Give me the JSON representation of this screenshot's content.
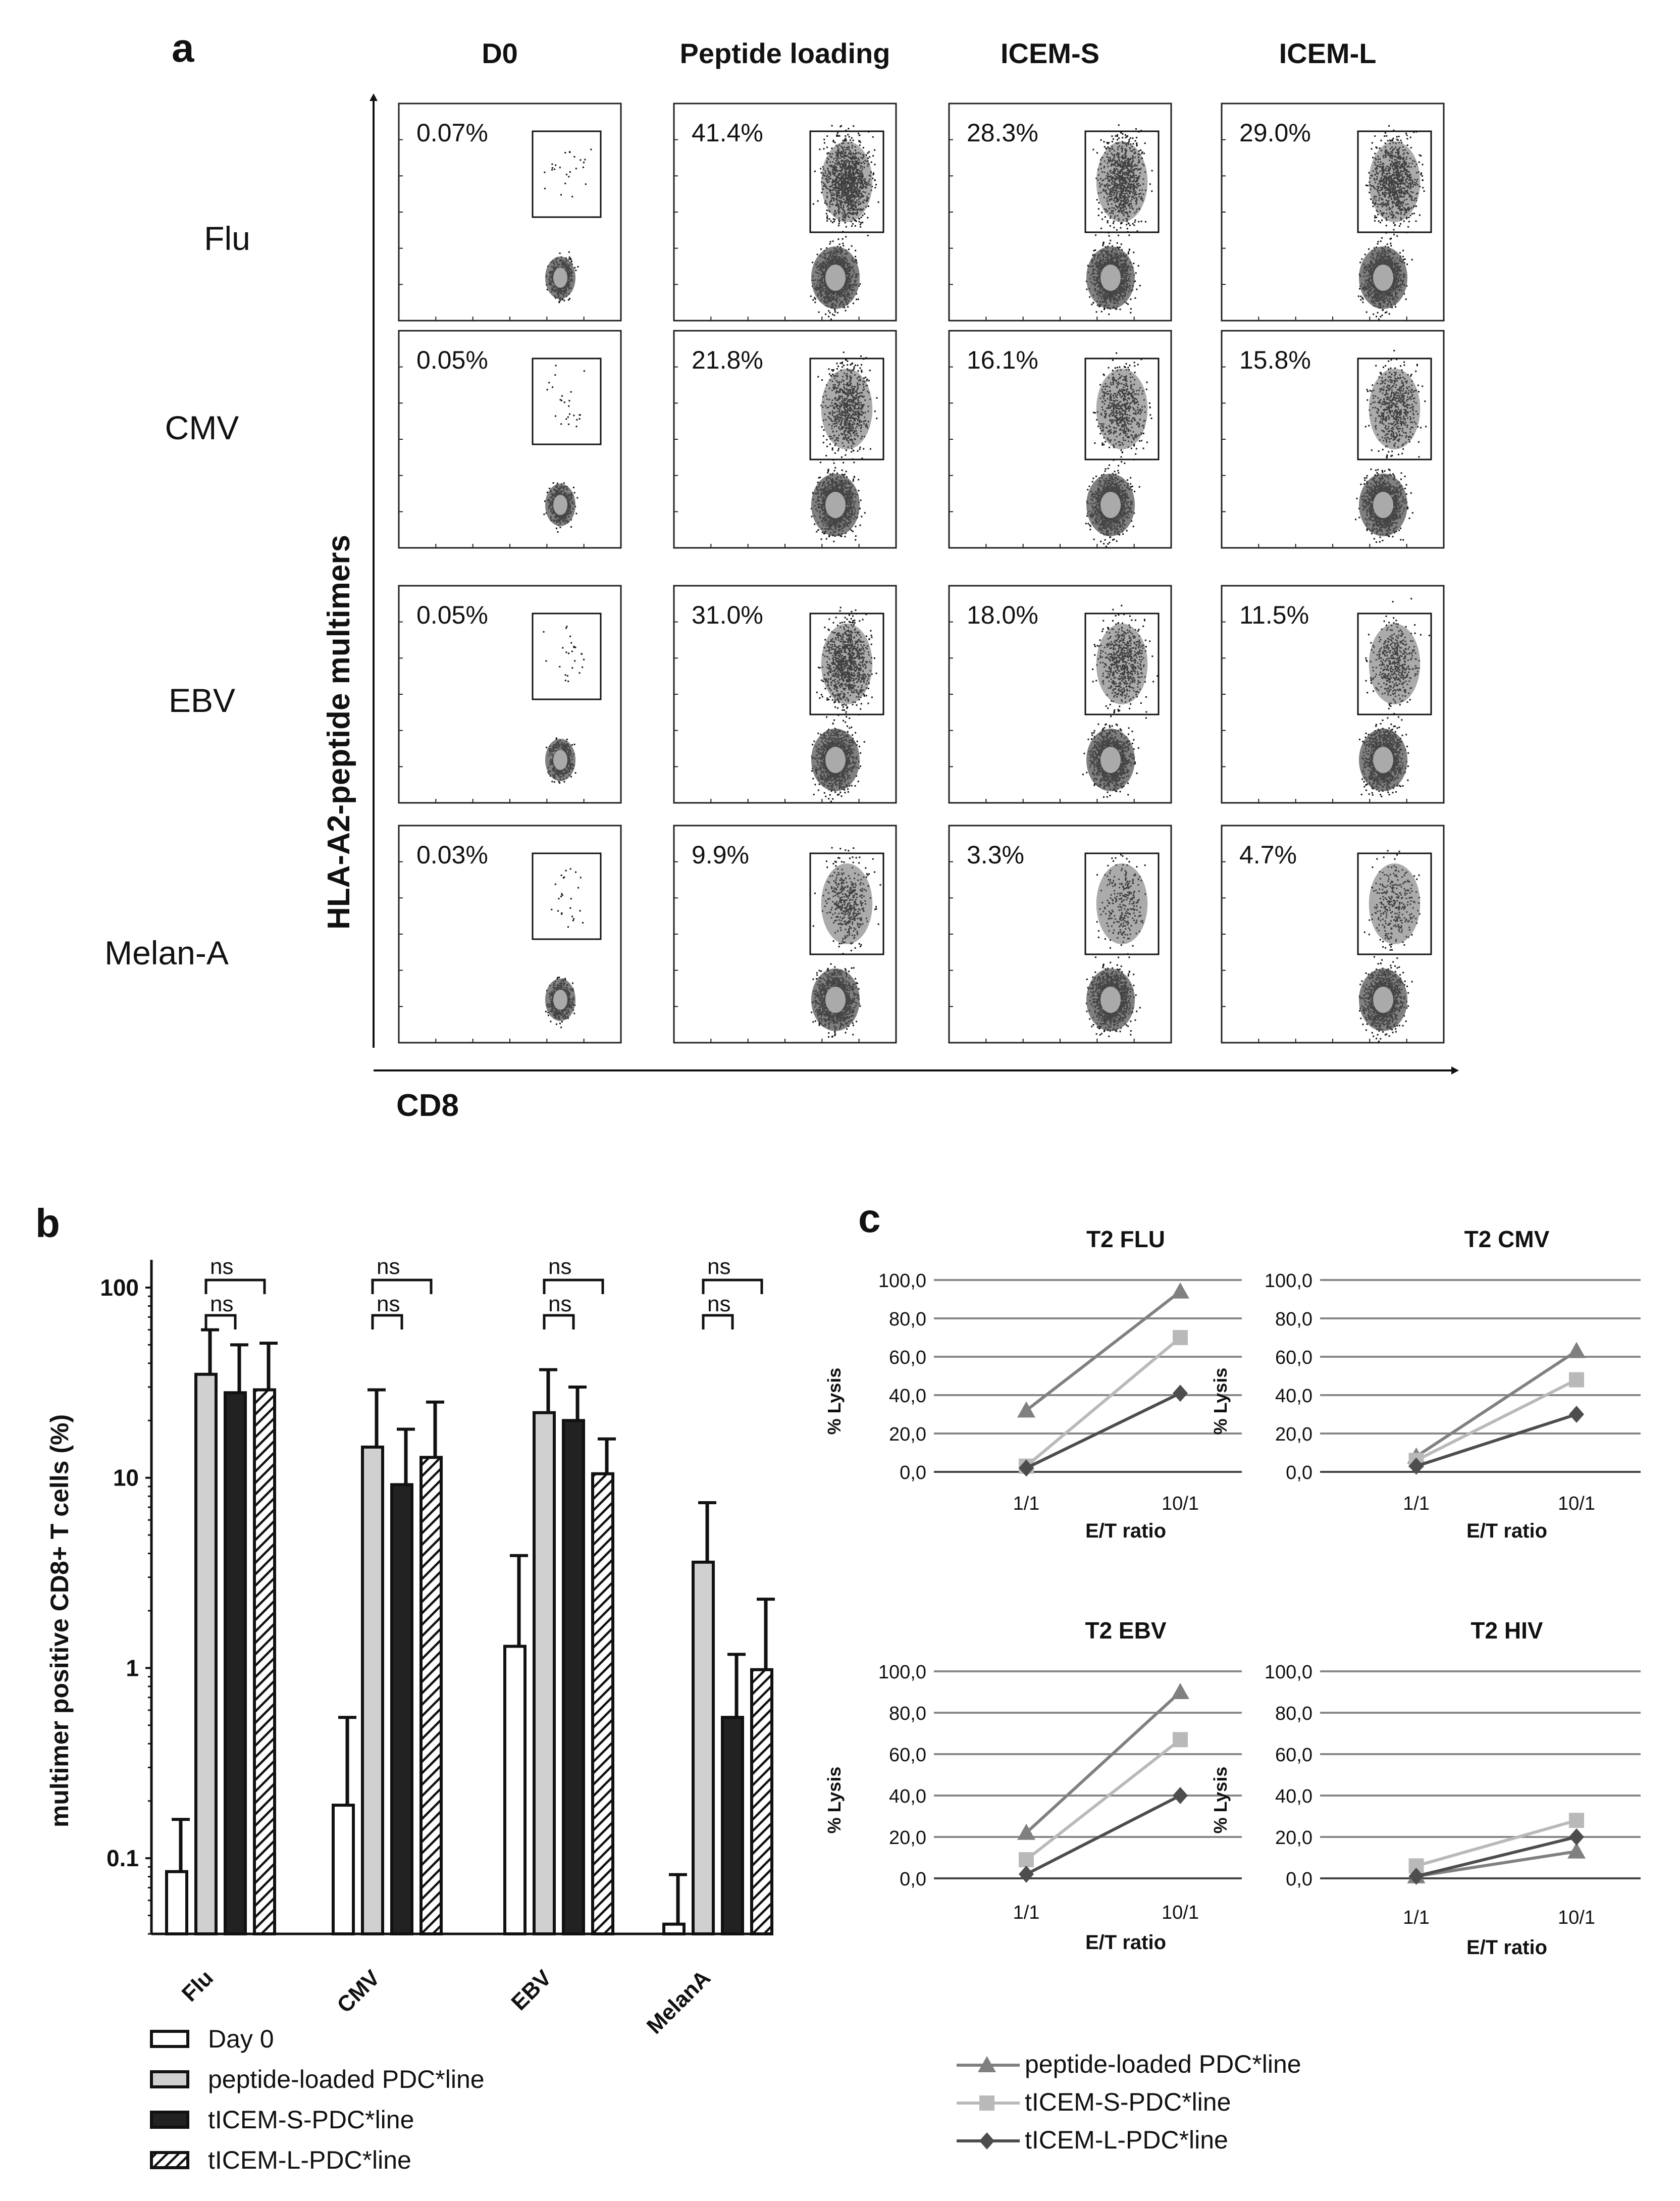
{
  "panel_labels": {
    "a": "a",
    "b": "b",
    "c": "c"
  },
  "colors": {
    "peptide": "#808080",
    "s": "#b9b9b9",
    "l": "#4d4d4d",
    "bar_grey": "#d0d0d0",
    "bar_black": "#222222",
    "grid": "#888888"
  },
  "chart_data": [
    {
      "id": "a",
      "type": "scatter",
      "title": "",
      "xlabel": "CD8",
      "ylabel": "HLA-A2-peptide multimers",
      "columns": [
        "D0",
        "Peptide loading",
        "ICEM-S",
        "ICEM-L"
      ],
      "rows": [
        "Flu",
        "CMV",
        "EBV",
        "Melan-A"
      ],
      "percentages": [
        [
          "0.07%",
          "41.4%",
          "28.3%",
          "29.0%"
        ],
        [
          "0.05%",
          "21.8%",
          "16.1%",
          "15.8%"
        ],
        [
          "0.05%",
          "31.0%",
          "18.0%",
          "11.5%"
        ],
        [
          "0.03%",
          "9.9%",
          "3.3%",
          "4.7%"
        ]
      ]
    },
    {
      "id": "b",
      "type": "bar",
      "ylabel": "multimer positive CD8+ T cells (%)",
      "yscale": "log",
      "ylim": [
        0.04,
        100
      ],
      "yticks": [
        "0.1",
        "1",
        "10",
        "100"
      ],
      "ytick_values": [
        0.1,
        1,
        10,
        100
      ],
      "categories": [
        "Flu",
        "CMV",
        "EBV",
        "MelanA"
      ],
      "series": [
        {
          "name": "Day 0",
          "pattern": "white",
          "values": [
            0.085,
            0.19,
            1.3,
            0.045
          ],
          "errors": [
            0.16,
            0.55,
            3.9,
            0.082
          ]
        },
        {
          "name": "peptide-loaded PDC*line",
          "pattern": "grey",
          "values": [
            35,
            14.5,
            22,
            3.6
          ],
          "errors": [
            60,
            29,
            37,
            7.4
          ]
        },
        {
          "name": "tICEM-S-PDC*line",
          "pattern": "black",
          "values": [
            28,
            9.2,
            20,
            0.55
          ],
          "errors": [
            50,
            18,
            30,
            1.18
          ]
        },
        {
          "name": "tICEM-L-PDC*line",
          "pattern": "hatched",
          "values": [
            29,
            12.8,
            10.5,
            0.98
          ],
          "errors": [
            51,
            25,
            16,
            2.3
          ]
        }
      ],
      "significance": [
        [
          "ns",
          "ns"
        ],
        [
          "ns",
          "ns"
        ],
        [
          "ns",
          "ns"
        ],
        [
          "ns",
          "ns"
        ]
      ]
    },
    {
      "id": "c",
      "type": "line",
      "xlabel": "E/T ratio",
      "ylabel": "% Lysis",
      "x": [
        "1/1",
        "10/1"
      ],
      "ylim": [
        0,
        100
      ],
      "yticks": [
        "0,0",
        "20,0",
        "40,0",
        "60,0",
        "80,0",
        "100,0"
      ],
      "ytick_values": [
        0,
        20,
        40,
        60,
        80,
        100
      ],
      "legend": [
        "peptide-loaded PDC*line",
        "tICEM-S-PDC*line",
        "tICEM-L-PDC*line"
      ],
      "subplots": [
        {
          "title": "T2 FLU",
          "series": [
            {
              "name": "peptide-loaded PDC*line",
              "values": [
                32,
                94
              ]
            },
            {
              "name": "tICEM-S-PDC*line",
              "values": [
                3,
                70
              ]
            },
            {
              "name": "tICEM-L-PDC*line",
              "values": [
                2,
                41
              ]
            }
          ]
        },
        {
          "title": "T2 CMV",
          "series": [
            {
              "name": "peptide-loaded PDC*line",
              "values": [
                8,
                63
              ]
            },
            {
              "name": "tICEM-S-PDC*line",
              "values": [
                6,
                48
              ]
            },
            {
              "name": "tICEM-L-PDC*line",
              "values": [
                3,
                30
              ]
            }
          ]
        },
        {
          "title": "T2 EBV",
          "series": [
            {
              "name": "peptide-loaded PDC*line",
              "values": [
                22,
                90
              ]
            },
            {
              "name": "tICEM-S-PDC*line",
              "values": [
                9,
                67
              ]
            },
            {
              "name": "tICEM-L-PDC*line",
              "values": [
                2,
                40
              ]
            }
          ]
        },
        {
          "title": "T2 HIV",
          "series": [
            {
              "name": "peptide-loaded PDC*line",
              "values": [
                1,
                13
              ]
            },
            {
              "name": "tICEM-S-PDC*line",
              "values": [
                6,
                28
              ]
            },
            {
              "name": "tICEM-L-PDC*line",
              "values": [
                1,
                20
              ]
            }
          ]
        }
      ]
    }
  ]
}
